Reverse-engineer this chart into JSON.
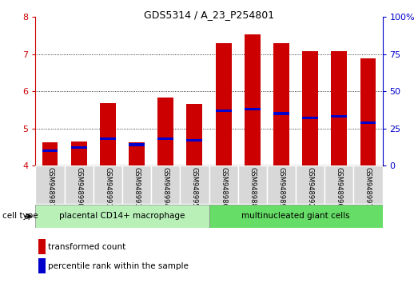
{
  "title": "GDS5314 / A_23_P254801",
  "samples": [
    "GSM948987",
    "GSM948990",
    "GSM948991",
    "GSM948993",
    "GSM948994",
    "GSM948995",
    "GSM948986",
    "GSM948988",
    "GSM948989",
    "GSM948992",
    "GSM948996",
    "GSM948997"
  ],
  "transformed_count": [
    4.63,
    4.65,
    5.68,
    4.63,
    5.83,
    5.65,
    7.3,
    7.54,
    7.3,
    7.08,
    7.08,
    6.88
  ],
  "percentile_rank_raw": [
    10,
    12,
    18,
    14,
    18,
    17,
    37,
    38,
    35,
    32,
    33,
    29
  ],
  "ylim_left": [
    4.0,
    8.0
  ],
  "groups": [
    {
      "label": "placental CD14+ macrophage",
      "count": 6,
      "color": "#b8f0b8"
    },
    {
      "label": "multinucleated giant cells",
      "count": 6,
      "color": "#66dd66"
    }
  ],
  "bar_color": "#cc0000",
  "marker_color": "#0000cc",
  "bar_width": 0.55,
  "tick_color_left": "#cc0000",
  "tick_color_right": "#0000cc",
  "cell_type_label": "cell type",
  "legend_transformed": "transformed count",
  "legend_percentile": "percentile rank within the sample",
  "dotted_grid_lines": [
    5.0,
    6.0,
    7.0
  ],
  "right_yticks_pct": [
    0,
    25,
    50,
    75,
    100
  ],
  "left_yticks": [
    4,
    5,
    6,
    7,
    8
  ]
}
